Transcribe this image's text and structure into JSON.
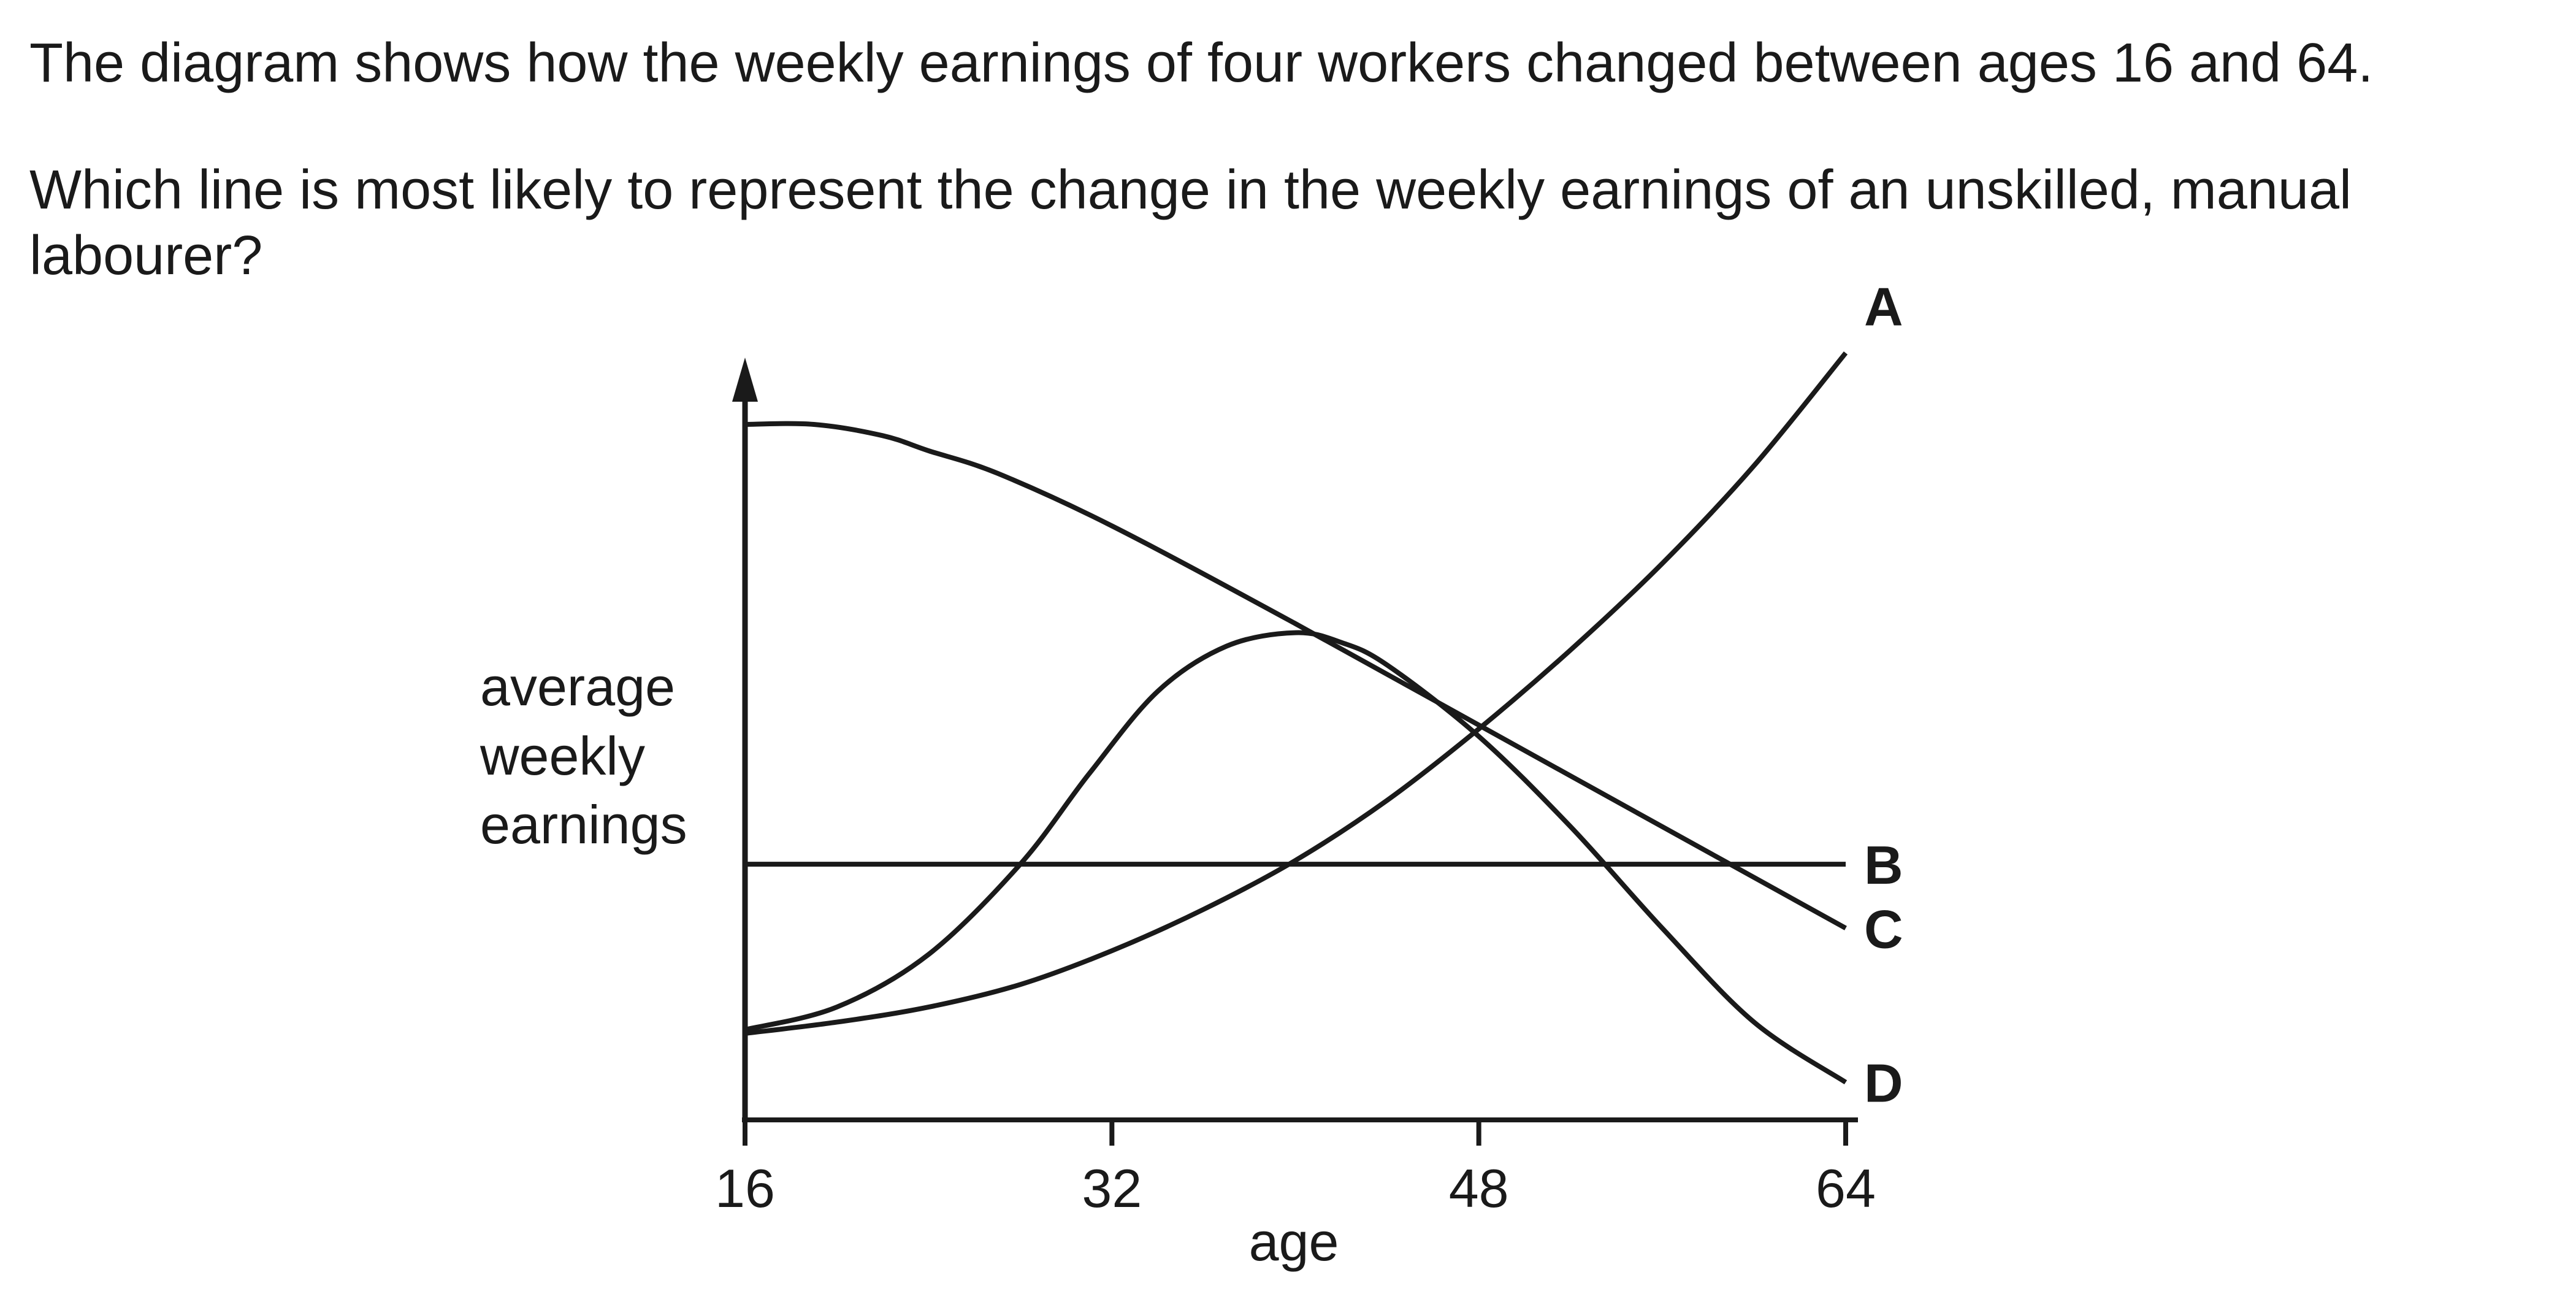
{
  "question": {
    "stem": "The diagram shows how the weekly earnings of four workers changed between ages 16 and 64.",
    "prompt": "Which line is most likely to represent the change in the weekly earnings of an unskilled, manual labourer?"
  },
  "chart_data": {
    "type": "line",
    "xlabel": "age",
    "ylabel_lines": [
      "average",
      "weekly",
      "earnings"
    ],
    "x_ticks": [
      16,
      32,
      48,
      64
    ],
    "xlim": [
      16,
      64
    ],
    "ylim": [
      0,
      10
    ],
    "y_ticks_labeled": false,
    "grid": false,
    "legend": "labels at line ends (right)",
    "line_color": "#1a1a1a",
    "series": [
      {
        "name": "A",
        "x": [
          16,
          20,
          24,
          28,
          32,
          36,
          40,
          44,
          48,
          52,
          56,
          60,
          64
        ],
        "y": [
          1.15,
          1.3,
          1.5,
          1.8,
          2.25,
          2.8,
          3.45,
          4.25,
          5.2,
          6.25,
          7.4,
          8.7,
          10.2
        ]
      },
      {
        "name": "B",
        "x": [
          16,
          64
        ],
        "y": [
          3.4,
          3.4
        ]
      },
      {
        "name": "C",
        "x": [
          16,
          19,
          22,
          24,
          27,
          32,
          40,
          48,
          56,
          64
        ],
        "y": [
          9.25,
          9.25,
          9.1,
          8.9,
          8.6,
          7.9,
          6.6,
          5.25,
          3.9,
          2.55
        ]
      },
      {
        "name": "D",
        "x": [
          16,
          20,
          24,
          28,
          31,
          34,
          37,
          40,
          42,
          44,
          48,
          52,
          56,
          60,
          64
        ],
        "y": [
          1.2,
          1.5,
          2.2,
          3.4,
          4.6,
          5.7,
          6.3,
          6.48,
          6.35,
          6.05,
          5.1,
          3.9,
          2.55,
          1.3,
          0.5
        ]
      }
    ]
  }
}
